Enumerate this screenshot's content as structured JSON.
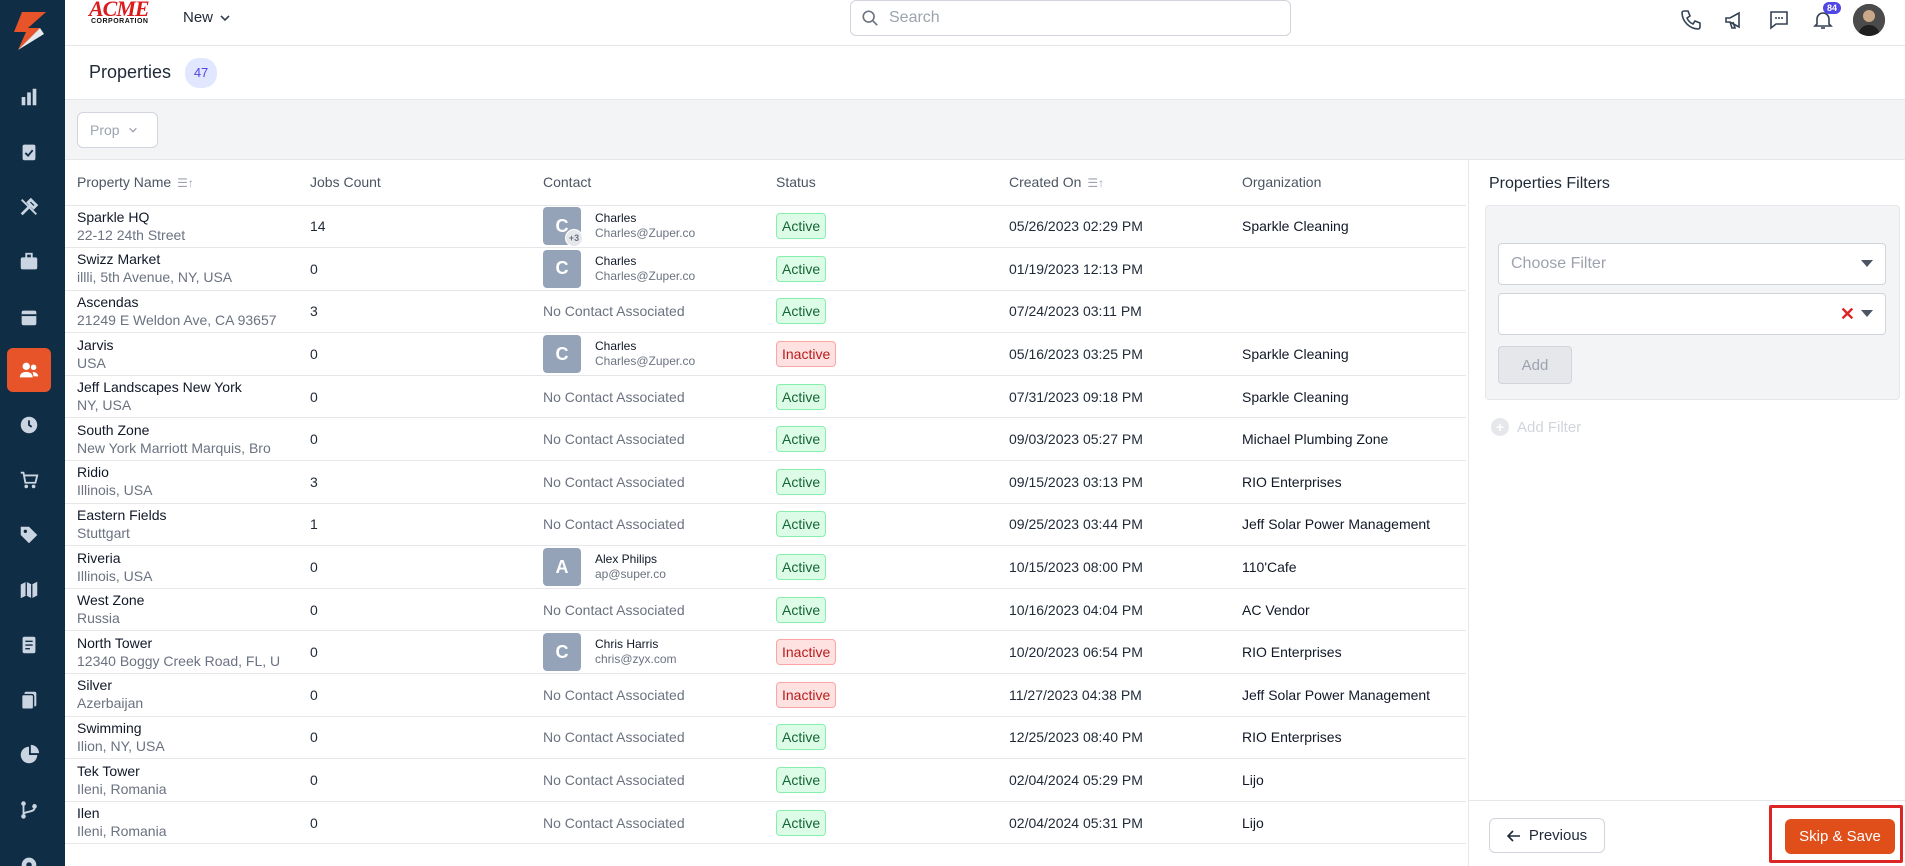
{
  "topbar": {
    "brand_text": "ACME",
    "brand_sub": "CORPORATION",
    "new_label": "New",
    "search_placeholder": "Search",
    "notification_count": "84"
  },
  "page": {
    "title": "Properties",
    "count": "47",
    "prop_filter": "Prop"
  },
  "table": {
    "headers": {
      "property_name": "Property Name",
      "jobs_count": "Jobs Count",
      "contact": "Contact",
      "status": "Status",
      "created_on": "Created On",
      "organization": "Organization"
    },
    "rows": [
      {
        "name": "Sparkle HQ",
        "address": "22-12 24th Street",
        "jobs": "14",
        "contact_initial": "C",
        "contact_extra": "+3",
        "contact_name": "Charles",
        "contact_email": "Charles@Zuper.co",
        "status": "Active",
        "created": "05/26/2023 02:29 PM",
        "org": "Sparkle Cleaning"
      },
      {
        "name": "Swizz Market",
        "address": "illli, 5th Avenue, NY, USA",
        "jobs": "0",
        "contact_initial": "C",
        "contact_name": "Charles",
        "contact_email": "Charles@Zuper.co",
        "status": "Active",
        "created": "01/19/2023 12:13 PM",
        "org": ""
      },
      {
        "name": "Ascendas",
        "address": "21249 E Weldon Ave, CA 93657",
        "jobs": "3",
        "no_contact": "No Contact Associated",
        "status": "Active",
        "created": "07/24/2023 03:11 PM",
        "org": ""
      },
      {
        "name": "Jarvis",
        "address": "USA",
        "jobs": "0",
        "contact_initial": "C",
        "contact_name": "Charles",
        "contact_email": "Charles@Zuper.co",
        "status": "Inactive",
        "created": "05/16/2023 03:25 PM",
        "org": "Sparkle Cleaning"
      },
      {
        "name": "Jeff Landscapes New York",
        "address": "NY, USA",
        "jobs": "0",
        "no_contact": "No Contact Associated",
        "status": "Active",
        "created": "07/31/2023 09:18 PM",
        "org": "Sparkle Cleaning"
      },
      {
        "name": "South Zone",
        "address": "New York Marriott Marquis, Bro",
        "jobs": "0",
        "no_contact": "No Contact Associated",
        "status": "Active",
        "created": "09/03/2023 05:27 PM",
        "org": "Michael Plumbing Zone"
      },
      {
        "name": "Ridio",
        "address": "Illinois, USA",
        "jobs": "3",
        "no_contact": "No Contact Associated",
        "status": "Active",
        "created": "09/15/2023 03:13 PM",
        "org": "RIO Enterprises"
      },
      {
        "name": "Eastern Fields",
        "address": "Stuttgart",
        "jobs": "1",
        "no_contact": "No Contact Associated",
        "status": "Active",
        "created": "09/25/2023 03:44 PM",
        "org": "Jeff Solar Power Management"
      },
      {
        "name": "Riveria",
        "address": "Illinois, USA",
        "jobs": "0",
        "contact_initial": "A",
        "contact_name": "Alex Philips",
        "contact_email": "ap@super.co",
        "status": "Active",
        "created": "10/15/2023 08:00 PM",
        "org": "110'Cafe"
      },
      {
        "name": "West Zone",
        "address": "Russia",
        "jobs": "0",
        "no_contact": "No Contact Associated",
        "status": "Active",
        "created": "10/16/2023 04:04 PM",
        "org": "AC Vendor"
      },
      {
        "name": "North Tower",
        "address": "12340 Boggy Creek Road, FL, U",
        "jobs": "0",
        "contact_initial": "C",
        "contact_name": "Chris Harris",
        "contact_email": "chris@zyx.com",
        "status": "Inactive",
        "created": "10/20/2023 06:54 PM",
        "org": "RIO Enterprises"
      },
      {
        "name": "Silver",
        "address": "Azerbaijan",
        "jobs": "0",
        "no_contact": "No Contact Associated",
        "status": "Inactive",
        "created": "11/27/2023 04:38 PM",
        "org": "Jeff Solar Power Management"
      },
      {
        "name": "Swimming",
        "address": "Ilion, NY, USA",
        "jobs": "0",
        "no_contact": "No Contact Associated",
        "status": "Active",
        "created": "12/25/2023 08:40 PM",
        "org": "RIO Enterprises"
      },
      {
        "name": "Tek Tower",
        "address": "Ileni, Romania",
        "jobs": "0",
        "no_contact": "No Contact Associated",
        "status": "Active",
        "created": "02/04/2024 05:29 PM",
        "org": "Lijo"
      },
      {
        "name": "Ilen",
        "address": "Ileni, Romania",
        "jobs": "0",
        "no_contact": "No Contact Associated",
        "status": "Active",
        "created": "02/04/2024 05:31 PM",
        "org": "Lijo"
      }
    ]
  },
  "filters_panel": {
    "title": "Properties Filters",
    "choose_placeholder": "Choose Filter",
    "add_label": "Add",
    "add_filter_label": "Add Filter",
    "previous_label": "Previous",
    "skip_save_label": "Skip & Save"
  },
  "colors": {
    "sidebar": "#0f2d45",
    "accent": "#e8542a",
    "active_status": "#166534",
    "inactive_status": "#b91c1c"
  },
  "sidebar_icons": [
    "dashboard-icon",
    "jobs-icon",
    "tools-icon",
    "briefcase-icon",
    "calendar-icon",
    "properties-icon",
    "clock-icon",
    "cart-icon",
    "tag-icon",
    "map-icon",
    "invoice-icon",
    "documents-icon",
    "reports-icon",
    "workflow-icon",
    "settings-icon"
  ]
}
